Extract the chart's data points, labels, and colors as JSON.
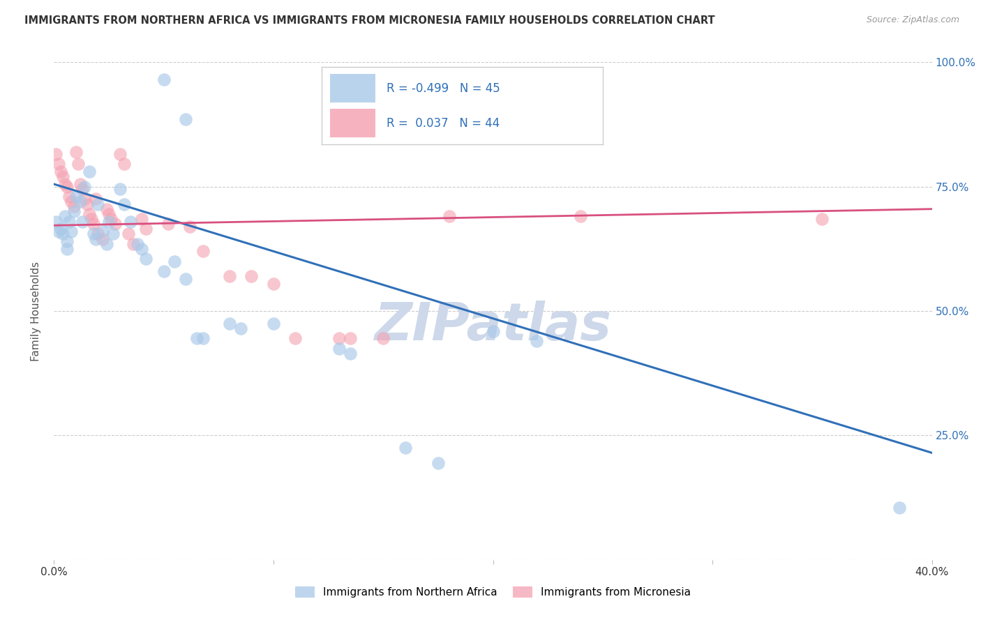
{
  "title": "IMMIGRANTS FROM NORTHERN AFRICA VS IMMIGRANTS FROM MICRONESIA FAMILY HOUSEHOLDS CORRELATION CHART",
  "source": "Source: ZipAtlas.com",
  "ylabel": "Family Households",
  "x_min": 0.0,
  "x_max": 0.4,
  "y_min": 0.0,
  "y_max": 1.0,
  "x_ticks": [
    0.0,
    0.1,
    0.2,
    0.3,
    0.4
  ],
  "x_tick_labels": [
    "0.0%",
    "",
    "",
    "",
    "40.0%"
  ],
  "y_ticks": [
    0.0,
    0.25,
    0.5,
    0.75,
    1.0
  ],
  "y_tick_labels_right": [
    "",
    "25.0%",
    "50.0%",
    "75.0%",
    "100.0%"
  ],
  "blue_color": "#a8c8e8",
  "pink_color": "#f4a0b0",
  "blue_line_color": "#3070b8",
  "pink_line_color": "#d85080",
  "blue_scatter": [
    [
      0.001,
      0.68
    ],
    [
      0.002,
      0.66
    ],
    [
      0.003,
      0.665
    ],
    [
      0.004,
      0.655
    ],
    [
      0.005,
      0.69
    ],
    [
      0.006,
      0.64
    ],
    [
      0.006,
      0.625
    ],
    [
      0.007,
      0.68
    ],
    [
      0.008,
      0.66
    ],
    [
      0.009,
      0.7
    ],
    [
      0.01,
      0.73
    ],
    [
      0.012,
      0.72
    ],
    [
      0.013,
      0.68
    ],
    [
      0.014,
      0.75
    ],
    [
      0.016,
      0.78
    ],
    [
      0.018,
      0.655
    ],
    [
      0.019,
      0.645
    ],
    [
      0.02,
      0.715
    ],
    [
      0.022,
      0.66
    ],
    [
      0.024,
      0.635
    ],
    [
      0.025,
      0.68
    ],
    [
      0.027,
      0.655
    ],
    [
      0.03,
      0.745
    ],
    [
      0.032,
      0.715
    ],
    [
      0.035,
      0.68
    ],
    [
      0.038,
      0.635
    ],
    [
      0.04,
      0.625
    ],
    [
      0.042,
      0.605
    ],
    [
      0.05,
      0.58
    ],
    [
      0.055,
      0.6
    ],
    [
      0.06,
      0.565
    ],
    [
      0.065,
      0.445
    ],
    [
      0.068,
      0.445
    ],
    [
      0.08,
      0.475
    ],
    [
      0.085,
      0.465
    ],
    [
      0.1,
      0.475
    ],
    [
      0.13,
      0.425
    ],
    [
      0.135,
      0.415
    ],
    [
      0.16,
      0.225
    ],
    [
      0.175,
      0.195
    ],
    [
      0.2,
      0.46
    ],
    [
      0.22,
      0.44
    ],
    [
      0.05,
      0.965
    ],
    [
      0.06,
      0.885
    ],
    [
      0.385,
      0.105
    ]
  ],
  "pink_scatter": [
    [
      0.001,
      0.815
    ],
    [
      0.002,
      0.795
    ],
    [
      0.003,
      0.78
    ],
    [
      0.004,
      0.77
    ],
    [
      0.005,
      0.755
    ],
    [
      0.006,
      0.75
    ],
    [
      0.007,
      0.73
    ],
    [
      0.008,
      0.72
    ],
    [
      0.009,
      0.71
    ],
    [
      0.01,
      0.82
    ],
    [
      0.011,
      0.795
    ],
    [
      0.012,
      0.755
    ],
    [
      0.013,
      0.745
    ],
    [
      0.014,
      0.725
    ],
    [
      0.015,
      0.715
    ],
    [
      0.016,
      0.695
    ],
    [
      0.017,
      0.685
    ],
    [
      0.018,
      0.675
    ],
    [
      0.019,
      0.725
    ],
    [
      0.02,
      0.655
    ],
    [
      0.022,
      0.645
    ],
    [
      0.024,
      0.705
    ],
    [
      0.025,
      0.695
    ],
    [
      0.026,
      0.685
    ],
    [
      0.028,
      0.675
    ],
    [
      0.03,
      0.815
    ],
    [
      0.032,
      0.795
    ],
    [
      0.034,
      0.655
    ],
    [
      0.036,
      0.635
    ],
    [
      0.04,
      0.685
    ],
    [
      0.042,
      0.665
    ],
    [
      0.052,
      0.675
    ],
    [
      0.062,
      0.67
    ],
    [
      0.068,
      0.62
    ],
    [
      0.08,
      0.57
    ],
    [
      0.09,
      0.57
    ],
    [
      0.1,
      0.555
    ],
    [
      0.11,
      0.445
    ],
    [
      0.13,
      0.445
    ],
    [
      0.135,
      0.445
    ],
    [
      0.15,
      0.445
    ],
    [
      0.18,
      0.69
    ],
    [
      0.24,
      0.69
    ],
    [
      0.35,
      0.685
    ]
  ],
  "blue_line": [
    [
      0.0,
      0.755
    ],
    [
      0.4,
      0.215
    ]
  ],
  "pink_line": [
    [
      0.0,
      0.672
    ],
    [
      0.4,
      0.705
    ]
  ],
  "watermark": "ZIPatlas",
  "watermark_color": "#cdd8ea",
  "legend_label1": "Immigrants from Northern Africa",
  "legend_label2": "Immigrants from Micronesia",
  "legend_r1": "-0.499",
  "legend_n1": "45",
  "legend_r2": " 0.037",
  "legend_n2": "44",
  "background_color": "#ffffff",
  "grid_color": "#cccccc"
}
